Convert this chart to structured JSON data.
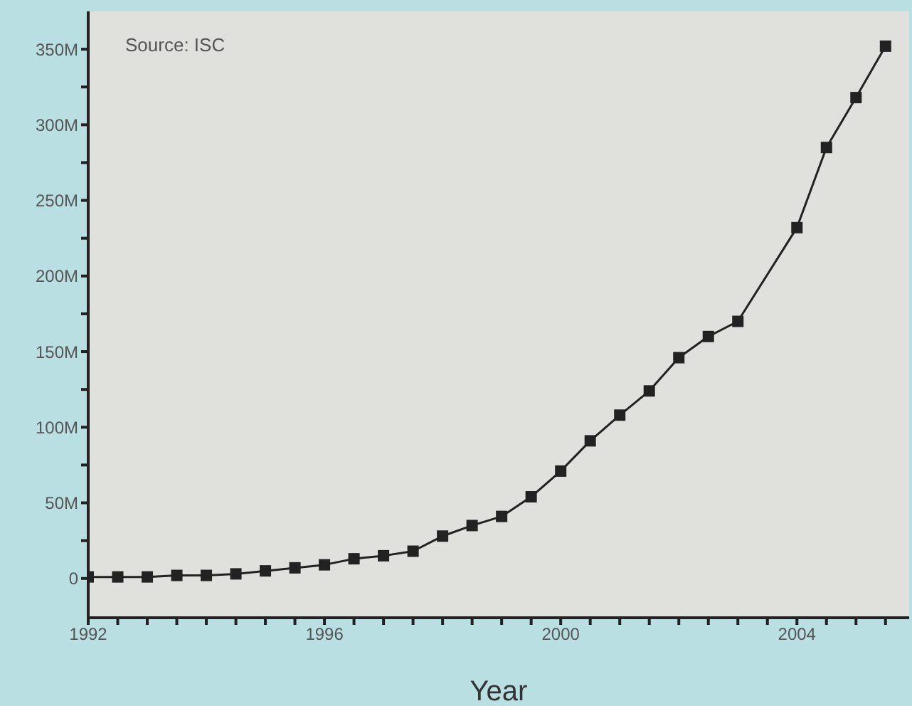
{
  "chart_data": {
    "type": "line",
    "xlabel": "Year",
    "annotations": [
      "Source: ISC"
    ],
    "x": [
      1992,
      1992.5,
      1993,
      1993.5,
      1994,
      1994.5,
      1995,
      1995.5,
      1996,
      1996.5,
      1997,
      1997.5,
      1998,
      1998.5,
      1999,
      1999.5,
      2000,
      2000.5,
      2001,
      2001.5,
      2002,
      2002.5,
      2003,
      2004,
      2004.5,
      2005,
      2005.5
    ],
    "series": [
      {
        "color": "#222222",
        "values": [
          1,
          1,
          1,
          2,
          2,
          3,
          5,
          7,
          9,
          13,
          15,
          18,
          28,
          35,
          41,
          54,
          71,
          91,
          108,
          124,
          146,
          160,
          170,
          232,
          285,
          318,
          352
        ]
      }
    ],
    "xlim": [
      1992,
      2005.9
    ],
    "xticks": [
      1992,
      {
        "value": 1992.5,
        "label": null
      },
      {
        "value": 1993,
        "label": null
      },
      {
        "value": 1993.5,
        "label": null
      },
      {
        "value": 1994,
        "label": null
      },
      {
        "value": 1994.5,
        "label": null
      },
      {
        "value": 1995,
        "label": null
      },
      {
        "value": 1995.5,
        "label": null
      },
      1996,
      {
        "value": 1996.5,
        "label": null
      },
      {
        "value": 1997,
        "label": null
      },
      {
        "value": 1997.5,
        "label": null
      },
      {
        "value": 1998,
        "label": null
      },
      {
        "value": 1998.5,
        "label": null
      },
      {
        "value": 1999,
        "label": null
      },
      {
        "value": 1999.5,
        "label": null
      },
      2000,
      {
        "value": 2000.5,
        "label": null
      },
      {
        "value": 2001,
        "label": null
      },
      {
        "value": 2001.5,
        "label": null
      },
      {
        "value": 2002,
        "label": null
      },
      {
        "value": 2002.5,
        "label": null
      },
      {
        "value": 2003,
        "label": null
      },
      {
        "value": 2003.5,
        "label": null
      },
      2004,
      {
        "value": 2004.5,
        "label": null
      },
      {
        "value": 2005,
        "label": null
      },
      {
        "value": 2005.5,
        "label": null
      }
    ],
    "ylim": [
      -26,
      375
    ],
    "yticks": [
      0,
      {
        "value": 25,
        "label": null
      },
      {
        "value": 50,
        "label": "50M"
      },
      {
        "value": 75,
        "label": null
      },
      {
        "value": 100,
        "label": "100M"
      },
      {
        "value": 125,
        "label": null
      },
      {
        "value": 150,
        "label": "150M"
      },
      {
        "value": 175,
        "label": null
      },
      {
        "value": 200,
        "label": "200M"
      },
      {
        "value": 225,
        "label": null
      },
      {
        "value": 250,
        "label": "250M"
      },
      {
        "value": 275,
        "label": null
      },
      {
        "value": 300,
        "label": "300M"
      },
      {
        "value": 325,
        "label": null
      },
      {
        "value": 350,
        "label": "350M"
      }
    ],
    "marker": "square",
    "line_style": "solid",
    "grid": false
  }
}
